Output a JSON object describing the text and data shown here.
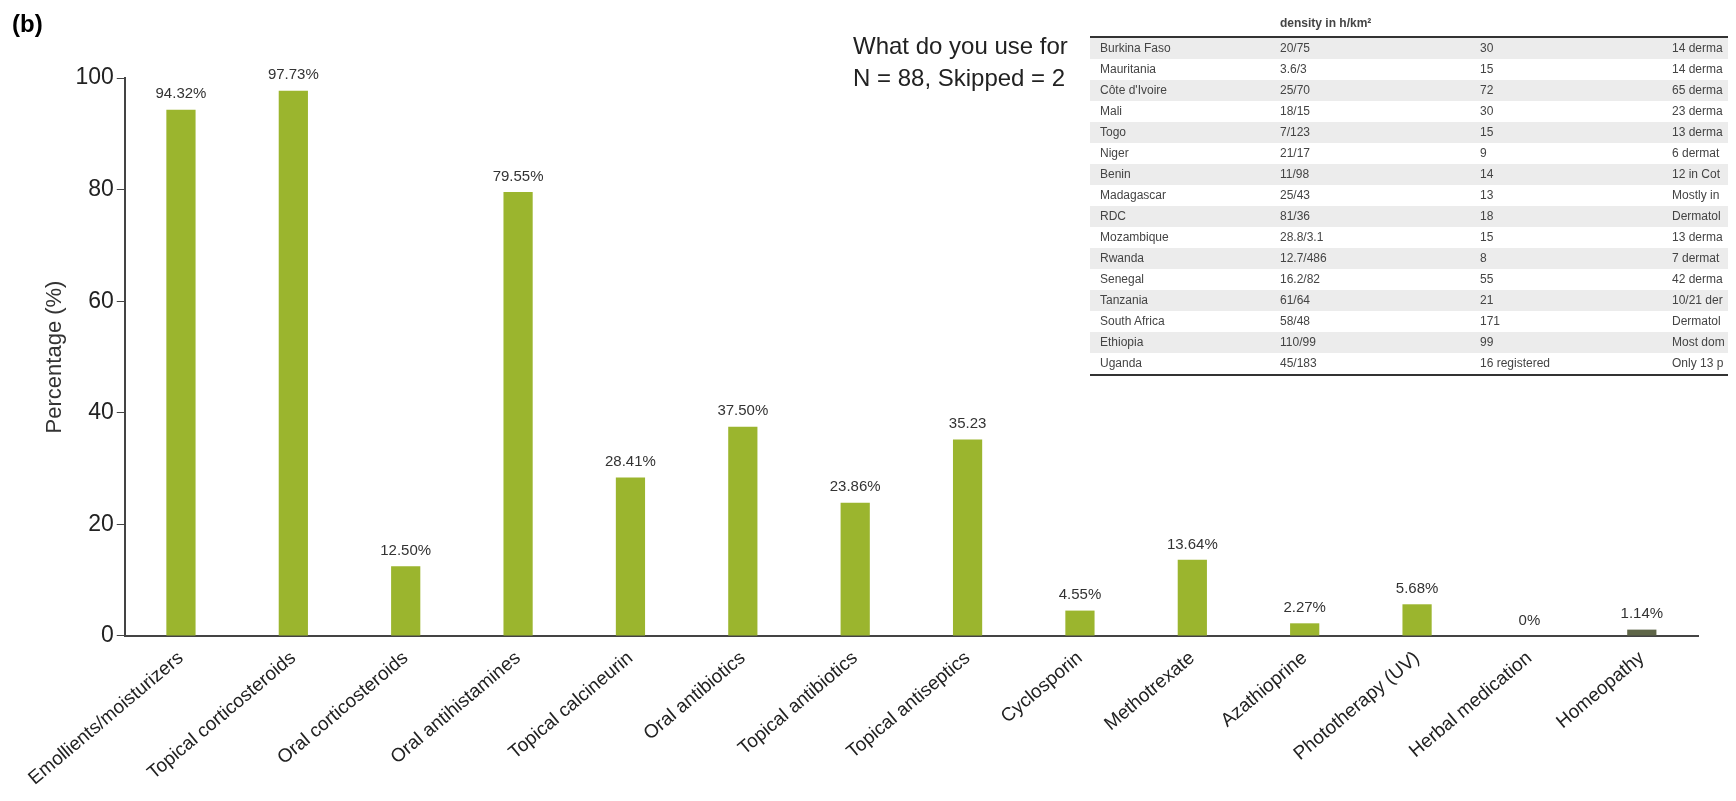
{
  "chart_data": [
    {
      "type": "bar",
      "title": "What do you use for",
      "subtitle": "N = 88, Skipped = 2",
      "ylabel": "Percentage (%)",
      "annotations": [
        "(b)"
      ],
      "categories": [
        "Emollients/moisturizers",
        "Topical corticosteroids",
        "Oral corticosteroids",
        "Oral antihistamines",
        "Topical calcineurin",
        "Oral antibiotics",
        "Topical antibiotics",
        "Topical antiseptics",
        "Cyclosporin",
        "Methotrexate",
        "Azathioprine",
        "Phototherapy (UV)",
        "Herbal medication",
        "Homeopathy"
      ],
      "values": [
        94.32,
        97.73,
        12.5,
        79.55,
        28.41,
        37.5,
        23.86,
        35.23,
        4.55,
        13.64,
        2.27,
        5.68,
        0,
        1.14
      ],
      "colors": [
        "#9bb52e",
        "#9bb52e",
        "#9bb52e",
        "#9bb52e",
        "#9bb52e",
        "#9bb52e",
        "#9bb52e",
        "#9bb52e",
        "#9bb52e",
        "#9bb52e",
        "#9bb52e",
        "#9bb52e",
        "#9bb52e",
        "#5f6648"
      ],
      "value_labels": [
        "94.32%",
        "97.73%",
        "12.50%",
        "79.55%",
        "28.41%",
        "37.50%",
        "23.86%",
        "35.23",
        "4.55%",
        "13.64%",
        "2.27%",
        "5.68%",
        "0%",
        "1.14%"
      ],
      "ylim": [
        0,
        100
      ],
      "yticks": [
        0,
        20,
        40,
        60,
        80,
        100
      ],
      "grid": false,
      "legend": false
    },
    {
      "type": "other",
      "categories": [
        "density in h/km²",
        null,
        null
      ],
      "y_categories": [
        "Burkina Faso",
        "Mauritania",
        "Côte d'Ivoire",
        "Mali",
        "Togo",
        "Niger",
        "Benin",
        "Madagascar",
        "RDC",
        "Mozambique",
        "Rwanda",
        "Senegal",
        "Tanzania",
        "South Africa",
        "Ethiopia",
        "Uganda"
      ],
      "cell_labels": [
        [
          "20/75",
          "30",
          "14 derma"
        ],
        [
          "3.6/3",
          "15",
          "14 derma"
        ],
        [
          "25/70",
          "72",
          "65 derma"
        ],
        [
          "18/15",
          "30",
          "23 derma"
        ],
        [
          "7/123",
          "15",
          "13 derma"
        ],
        [
          "21/17",
          "9",
          "6 dermat"
        ],
        [
          "11/98",
          "14",
          "12 in Cot"
        ],
        [
          "25/43",
          "13",
          "Mostly in"
        ],
        [
          "81/36",
          "18",
          "Dermatol"
        ],
        [
          "28.8/3.1",
          "15",
          "13 derma"
        ],
        [
          "12.7/486",
          "8",
          "7 dermat"
        ],
        [
          "16.2/82",
          "55",
          "42 derma"
        ],
        [
          "61/64",
          "21",
          "10/21 der"
        ],
        [
          "58/48",
          "171",
          "Dermatol"
        ],
        [
          "110/99",
          "99",
          "Most dom"
        ],
        [
          "45/183",
          "16 registered",
          "Only 13 p"
        ]
      ]
    }
  ]
}
